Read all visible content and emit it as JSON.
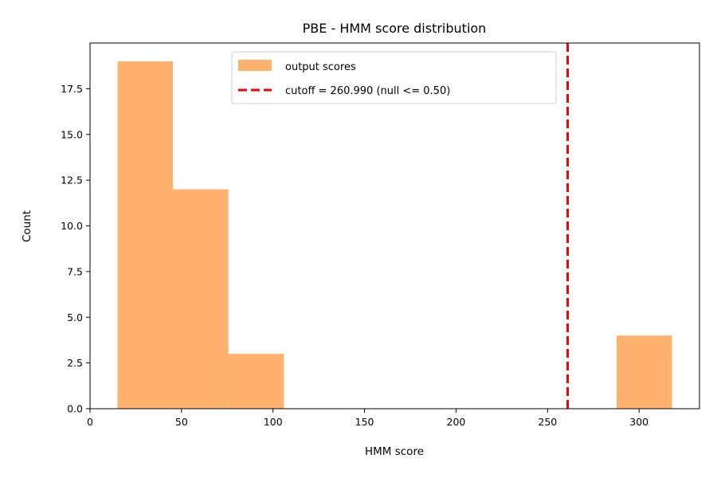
{
  "chart_data": {
    "type": "bar",
    "title": "PBE - HMM score distribution",
    "xlabel": "HMM score",
    "ylabel": "Count",
    "xlim": [
      0,
      333
    ],
    "ylim": [
      0,
      20
    ],
    "xticks": [
      0,
      50,
      100,
      150,
      200,
      250,
      300
    ],
    "yticks": [
      0.0,
      2.5,
      5.0,
      7.5,
      10.0,
      12.5,
      15.0,
      17.5
    ],
    "xtick_labels": [
      "0",
      "50",
      "100",
      "150",
      "200",
      "250",
      "300"
    ],
    "ytick_labels": [
      "0.0",
      "2.5",
      "5.0",
      "7.5",
      "10.0",
      "12.5",
      "15.0",
      "17.5"
    ],
    "bins": [
      {
        "start": 15,
        "end": 45.3,
        "count": 19
      },
      {
        "start": 45.3,
        "end": 75.6,
        "count": 12
      },
      {
        "start": 75.6,
        "end": 105.9,
        "count": 3
      },
      {
        "start": 105.9,
        "end": 136.2,
        "count": 0
      },
      {
        "start": 136.2,
        "end": 166.5,
        "count": 0
      },
      {
        "start": 166.5,
        "end": 196.8,
        "count": 0
      },
      {
        "start": 196.8,
        "end": 227.1,
        "count": 0
      },
      {
        "start": 227.1,
        "end": 257.4,
        "count": 0
      },
      {
        "start": 257.4,
        "end": 287.7,
        "count": 0
      },
      {
        "start": 287.7,
        "end": 318.0,
        "count": 4
      }
    ],
    "bar_color": "#ffb26e",
    "cutoff": {
      "value": 260.99,
      "color": "#ee0000"
    },
    "legend": {
      "placement": "upper center",
      "entries": [
        "output scores",
        "cutoff = 260.990 (null <= 0.50)"
      ]
    },
    "grid": false
  }
}
